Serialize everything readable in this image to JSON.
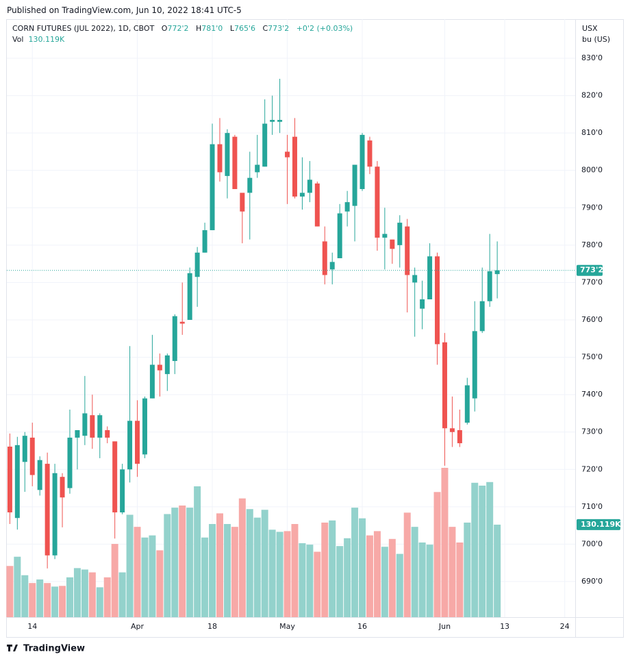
{
  "published": "Published on TradingView.com, Jun 10, 2022 18:41 UTC-5",
  "brand": "TradingView",
  "chart_data": {
    "type": "candlestick",
    "title": "CORN FUTURES (JUL 2022), 1D, CBOT",
    "legend": {
      "o_label": "O",
      "o": "772'2",
      "h_label": "H",
      "h": "781'0",
      "l_label": "L",
      "l": "765'6",
      "c_label": "C",
      "c": "773'2",
      "change": "+0'2 (+0.03%)"
    },
    "volume_title": "Vol",
    "volume_label": "130.119K",
    "last_label": "773'2",
    "unit_currency": "USX",
    "unit": "bu (US)",
    "up_color": "#26a69a",
    "down_color": "#ef5350",
    "volume_up_color": "#93d2cc",
    "volume_down_color": "#f7a9a7",
    "grid": true,
    "x": [
      0,
      1,
      2,
      3,
      4,
      5,
      6,
      7,
      8,
      9,
      10,
      11,
      12,
      13,
      14,
      15,
      16,
      17,
      18,
      19,
      20,
      21,
      22,
      23,
      24,
      25,
      26,
      27,
      28,
      29,
      30,
      31,
      32,
      33,
      34,
      35,
      36,
      37,
      38,
      39,
      40,
      41,
      42,
      43,
      44,
      45,
      46,
      47,
      48,
      49,
      50,
      51,
      52,
      53,
      54,
      55,
      56,
      57,
      58,
      59,
      60,
      61,
      62,
      63,
      64,
      65
    ],
    "xlim": [
      -0.4,
      75.4
    ],
    "xticks": [
      {
        "value": 3,
        "label": "14"
      },
      {
        "value": 17,
        "label": "Apr"
      },
      {
        "value": 27,
        "label": "18"
      },
      {
        "value": 37,
        "label": "May"
      },
      {
        "value": 47,
        "label": "16"
      },
      {
        "value": 58,
        "label": "Jun"
      },
      {
        "value": 66,
        "label": "13"
      },
      {
        "value": 74,
        "label": "24"
      }
    ],
    "ylim": [
      680.47,
      840.45
    ],
    "yticks": [
      {
        "value": 690,
        "label": "690'0"
      },
      {
        "value": 700,
        "label": "700'0"
      },
      {
        "value": 710,
        "label": "710'0"
      },
      {
        "value": 720,
        "label": "720'0"
      },
      {
        "value": 730,
        "label": "730'0"
      },
      {
        "value": 740,
        "label": "740'0"
      },
      {
        "value": 750,
        "label": "750'0"
      },
      {
        "value": 760,
        "label": "760'0"
      },
      {
        "value": 770,
        "label": "770'0"
      },
      {
        "value": 780,
        "label": "780'0"
      },
      {
        "value": 790,
        "label": "790'0"
      },
      {
        "value": 800,
        "label": "800'0"
      },
      {
        "value": 810,
        "label": "810'0"
      },
      {
        "value": 820,
        "label": "820'0"
      },
      {
        "value": 830,
        "label": "830'0"
      }
    ],
    "open": [
      726.1,
      707,
      722,
      728.5,
      714.5,
      721.5,
      697,
      718,
      715,
      728.5,
      729,
      734.5,
      728.5,
      730.5,
      727.5,
      708.5,
      720,
      733,
      724,
      739,
      748,
      745.5,
      749,
      759.5,
      760,
      771.5,
      778,
      784,
      807,
      798.5,
      809,
      794,
      794,
      799.5,
      801,
      813,
      813,
      805,
      809,
      793,
      794,
      796.5,
      781,
      773.5,
      776.5,
      789,
      790.5,
      795,
      808,
      801,
      782,
      781.5,
      780,
      785,
      770,
      763,
      765.5,
      777,
      754,
      731,
      730.5,
      732.5,
      739,
      757,
      765,
      772.25
    ],
    "high": [
      729.6,
      728.7,
      730,
      732.5,
      723.5,
      724.5,
      721.5,
      719,
      736,
      730.5,
      745,
      740,
      735,
      731.5,
      727.5,
      721.5,
      753,
      738.5,
      739.5,
      756,
      751,
      751,
      761.5,
      770,
      774,
      779.5,
      786,
      812.5,
      814,
      811,
      809.5,
      794,
      805,
      809.5,
      819,
      820,
      824.5,
      809.5,
      814,
      803.5,
      802.5,
      797,
      785,
      778,
      791,
      794.5,
      801.5,
      810,
      809,
      802.5,
      790,
      781.5,
      788,
      787,
      774,
      770.5,
      780.5,
      778,
      756.5,
      739.5,
      736,
      744.5,
      765,
      774,
      783,
      781
    ],
    "low": [
      705.4,
      703.9,
      714,
      715.5,
      713,
      693.5,
      696,
      704.5,
      713.5,
      720,
      726.5,
      725.5,
      723,
      727,
      701.5,
      708,
      716.5,
      718,
      723,
      739,
      739.5,
      741,
      745.5,
      756,
      760,
      763.5,
      778,
      784,
      797,
      792.5,
      795,
      780.5,
      781.5,
      798,
      801,
      809.5,
      810,
      791,
      792.5,
      789.5,
      791.5,
      785,
      769.5,
      769.5,
      776.5,
      785,
      781,
      794.5,
      799,
      778.5,
      773.5,
      775,
      774,
      762,
      755.5,
      757.5,
      765.5,
      748,
      721,
      726,
      726,
      732,
      735.5,
      756.5,
      763.5,
      765.75
    ],
    "close": [
      708.5,
      726.5,
      729,
      718.5,
      722.5,
      697,
      719,
      712.5,
      728.5,
      730.5,
      735,
      728.5,
      734.5,
      728.5,
      708.5,
      720,
      733,
      721.5,
      739,
      748,
      746.5,
      750.5,
      761,
      759,
      772.5,
      778,
      784,
      807,
      799.5,
      810,
      795,
      789,
      798,
      801.5,
      812.5,
      813.5,
      813.5,
      803.5,
      793,
      794,
      797.5,
      785,
      772,
      775.5,
      788.5,
      791.5,
      801.5,
      809.5,
      801,
      782,
      783,
      779,
      786,
      772,
      772,
      765.5,
      777,
      753.5,
      731,
      730,
      727,
      742.5,
      757,
      765,
      773,
      773.25
    ],
    "volume": [
      72000,
      85000,
      59000,
      48000,
      53000,
      48000,
      43000,
      44000,
      56000,
      69000,
      67000,
      63000,
      42000,
      56000,
      103000,
      63000,
      144000,
      127000,
      112000,
      115000,
      94000,
      145000,
      154000,
      157000,
      154000,
      184000,
      112000,
      131000,
      146000,
      131000,
      127000,
      167000,
      152000,
      140000,
      151000,
      123000,
      120000,
      121000,
      131000,
      104000,
      102000,
      92000,
      133000,
      136000,
      100000,
      111000,
      154000,
      139000,
      115000,
      121000,
      99000,
      110000,
      89000,
      147000,
      127000,
      105000,
      102000,
      176000,
      210000,
      127000,
      105000,
      133000,
      189000,
      185000,
      190000,
      130119
    ]
  }
}
